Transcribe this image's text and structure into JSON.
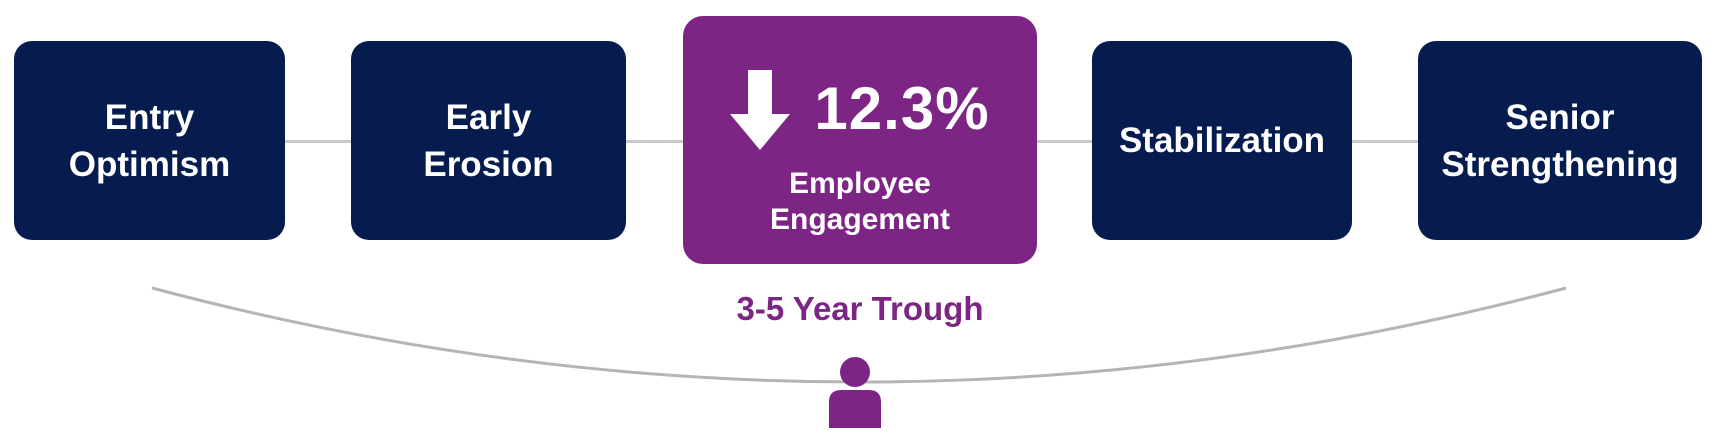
{
  "stages": [
    {
      "line1": "Entry",
      "line2": "Optimism"
    },
    {
      "line1": "Early",
      "line2": "Erosion"
    },
    {
      "line1": "Stabilization",
      "line2": ""
    },
    {
      "line1": "Senior",
      "line2": "Strengthening"
    }
  ],
  "highlight": {
    "value": "12.3%",
    "label_line1": "Employee",
    "label_line2": "Engagement",
    "direction_icon": "arrow-down-icon"
  },
  "trough": {
    "label": "3-5 Year Trough",
    "icon": "person-icon"
  },
  "colors": {
    "stage_box": "#061c4e",
    "highlight": "#7d2585",
    "connector": "#c9c9c9",
    "curve": "#b5b5b5"
  }
}
